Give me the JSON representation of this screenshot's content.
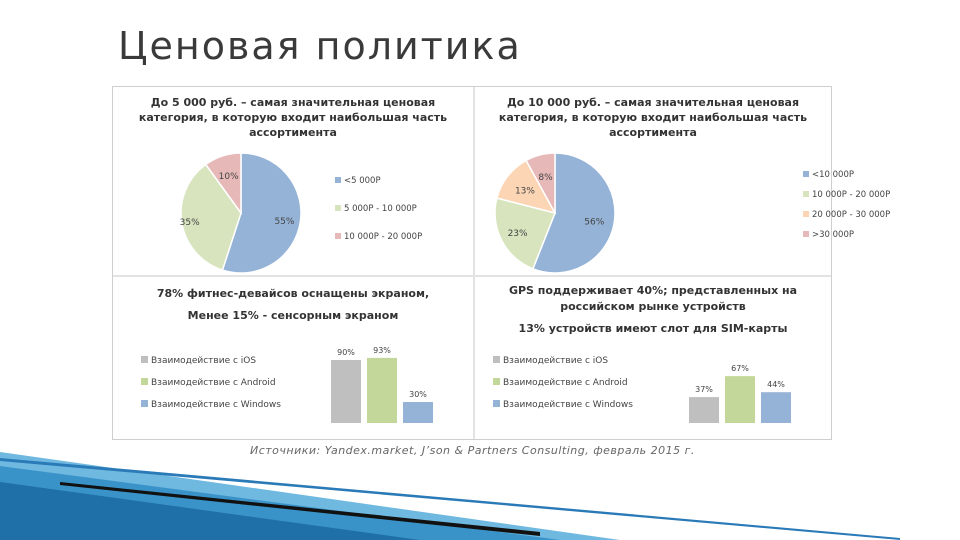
{
  "slide": {
    "title": "Ценовая политика",
    "source": "Источники: Yandex.market, J’son & Partners Consulting, февраль 2015 г."
  },
  "colors": {
    "blue": "#95b3d7",
    "green": "#c4d79b",
    "pink": "#e6b9b8",
    "peach": "#fcd5b4",
    "gray": "#bfbfbf"
  },
  "chart_data": [
    {
      "type": "pie",
      "title": "До 5 000 руб. – самая значительная ценовая категория, в которую входит наибольшая часть ассортимента",
      "title_lines": [
        "До 5 000 руб. – самая значительная ценовая",
        "категория, в которую входит наибольшая часть",
        "ассортимента"
      ],
      "categories": [
        "<5 000Р",
        "5 000Р - 10 000Р",
        "10 000Р - 20 000Р"
      ],
      "values": [
        55,
        35,
        10
      ],
      "labels": [
        "55%",
        "35%",
        "10%"
      ],
      "colors": [
        "#95b3d7",
        "#d7e4bd",
        "#e6b9b8"
      ],
      "legend": "right"
    },
    {
      "type": "pie",
      "title": "До 10 000 руб. – самая значительная ценовая категория, в которую входит наибольшая часть ассортимента",
      "title_lines": [
        "До 10 000 руб. – самая значительная ценовая",
        "категория, в которую входит наибольшая часть",
        "ассортимента"
      ],
      "categories": [
        "<10 000Р",
        "10 000Р - 20 000Р",
        "20 000Р - 30 000Р",
        ">30 000Р"
      ],
      "values": [
        56,
        23,
        13,
        8
      ],
      "labels": [
        "56%",
        "23%",
        "13%",
        "8%"
      ],
      "colors": [
        "#95b3d7",
        "#d7e4bd",
        "#fcd5b4",
        "#e6b9b8"
      ],
      "legend": "right"
    },
    {
      "type": "bar",
      "title_lines": [
        "78% фитнес-девайсов оснащены экраном,",
        "Менее 15% - сенсорным экраном"
      ],
      "categories": [
        "Взаимодействие с iOS",
        "Взаимодействие с Android",
        "Взаимодействие с Windows"
      ],
      "values": [
        90,
        93,
        30
      ],
      "labels": [
        "90%",
        "93%",
        "30%"
      ],
      "colors": [
        "#bfbfbf",
        "#c4d79b",
        "#95b3d7"
      ],
      "ylim": [
        0,
        100
      ],
      "legend": "left"
    },
    {
      "type": "bar",
      "title_lines": [
        "GPS поддерживает 40%; представленных на",
        "российском рынке устройств",
        "13% устройств имеют слот для SIM-карты"
      ],
      "categories": [
        "Взаимодействие с iOS",
        "Взаимодействие с Android",
        "Взаимодействие с Windows"
      ],
      "values": [
        37,
        67,
        44
      ],
      "labels": [
        "37%",
        "67%",
        "44%"
      ],
      "colors": [
        "#bfbfbf",
        "#c4d79b",
        "#95b3d7"
      ],
      "ylim": [
        0,
        100
      ],
      "legend": "left"
    }
  ]
}
